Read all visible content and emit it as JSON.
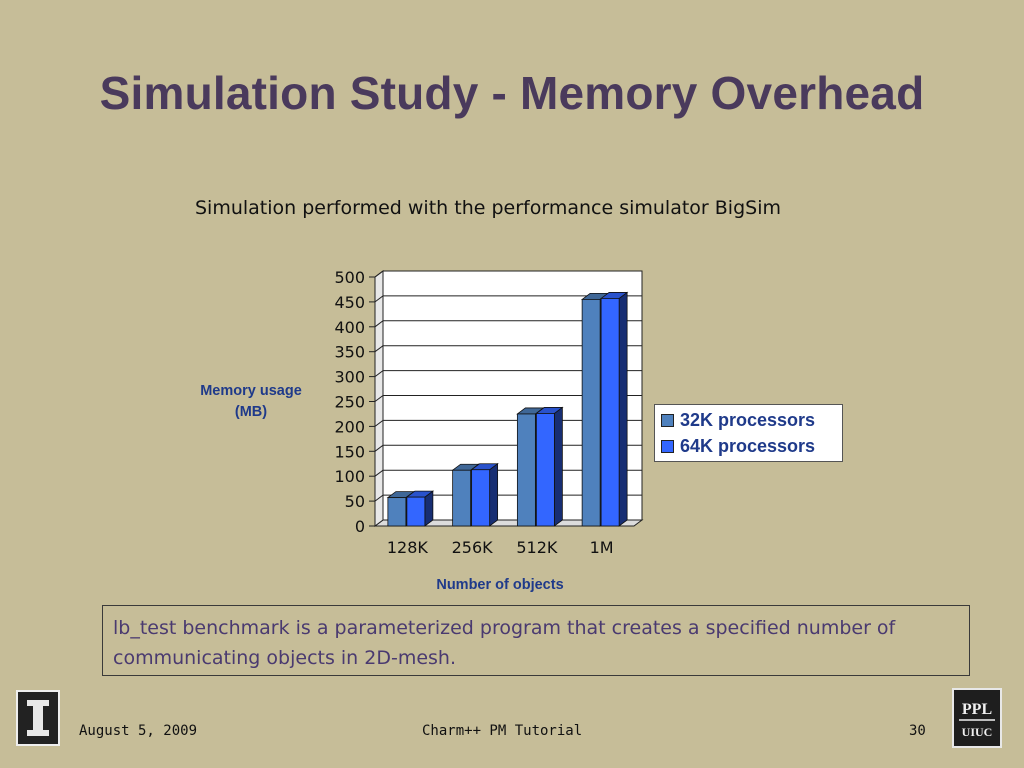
{
  "slide": {
    "title": "Simulation Study - Memory Overhead",
    "subtitle": "Simulation performed with the performance simulator BigSim",
    "note": "lb_test benchmark is a parameterized program that creates a specified number of communicating objects in 2D-mesh.",
    "footer": {
      "date": "August 5, 2009",
      "center": "Charm++ PM Tutorial",
      "page": "30"
    },
    "logos": {
      "left_icon": "illinois-i-logo",
      "right_text": "PPL UIUC"
    }
  },
  "chart_data": {
    "type": "bar",
    "title": "",
    "xlabel": "Number of objects",
    "ylabel": "Memory usage (MB)",
    "ylabel_lines": [
      "Memory usage",
      "(MB)"
    ],
    "categories": [
      "128K",
      "256K",
      "512K",
      "1M"
    ],
    "series": [
      {
        "name": "32K processors",
        "values": [
          57,
          112,
          225,
          455
        ],
        "color": "#4f81bd"
      },
      {
        "name": "64K processors",
        "values": [
          58,
          113,
          226,
          457
        ],
        "color": "#3366ff"
      }
    ],
    "ylim": [
      0,
      500
    ],
    "yticks": [
      0,
      50,
      100,
      150,
      200,
      250,
      300,
      350,
      400,
      450,
      500
    ],
    "grid": true,
    "legend_position": "right",
    "style_3d": true
  }
}
